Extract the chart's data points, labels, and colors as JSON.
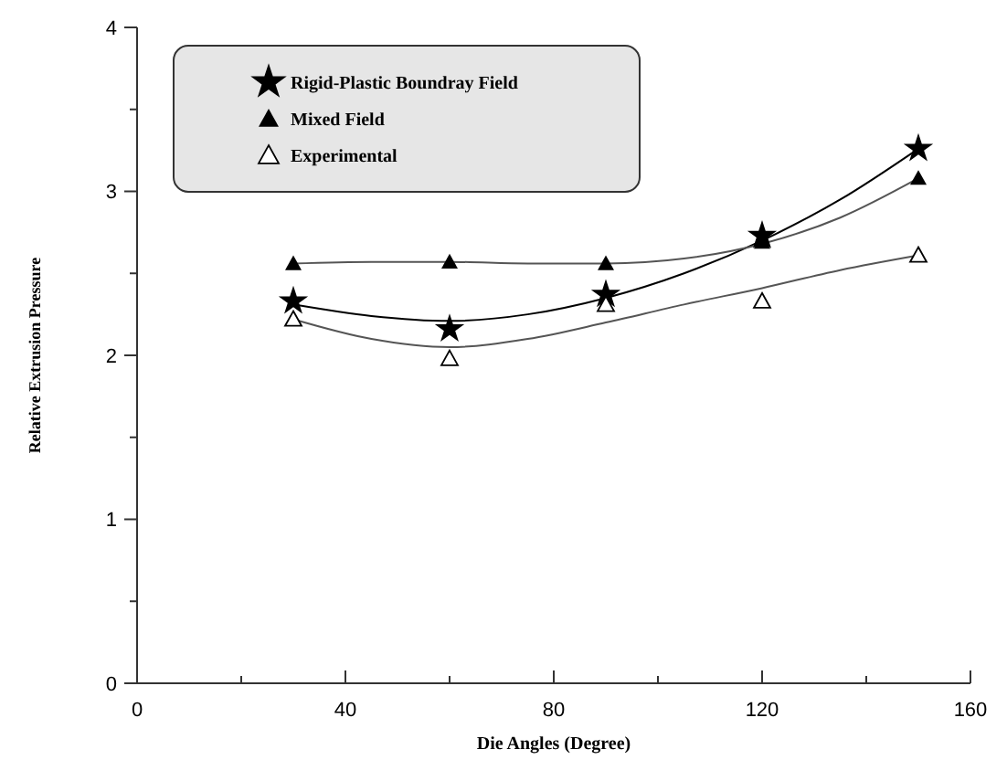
{
  "chart_data": {
    "type": "scatter",
    "xlabel": "Die Angles (Degree)",
    "ylabel": "Relative Extrusion Pressure",
    "xlim": [
      0,
      160
    ],
    "ylim": [
      0,
      4
    ],
    "xticks": [
      0,
      {
        "value": 20,
        "label": null
      },
      40,
      {
        "value": 60,
        "label": null
      },
      80,
      {
        "value": 100,
        "label": null
      },
      120,
      {
        "value": 140,
        "label": null
      },
      160
    ],
    "yticks": [
      0,
      {
        "value": 0.5,
        "label": null
      },
      1,
      {
        "value": 1.5,
        "label": null
      },
      2,
      {
        "value": 2.5,
        "label": null
      },
      3,
      {
        "value": 3.5,
        "label": null
      },
      4
    ],
    "grid": false,
    "legend": "top left",
    "series": [
      {
        "name": "Rigid-Plastic Boundray Field",
        "color": "#000000",
        "marker": "star",
        "x": [
          30,
          60,
          90,
          120,
          150
        ],
        "values": [
          2.33,
          2.16,
          2.37,
          2.73,
          3.26
        ]
      },
      {
        "name": "Mixed Field",
        "color": "#000000",
        "marker": "triangle",
        "x": [
          30,
          60,
          90,
          120,
          150
        ],
        "values": [
          2.56,
          2.57,
          2.56,
          2.69,
          3.08
        ]
      },
      {
        "name": "Experimental",
        "color": "#000000",
        "marker": "triangle-open",
        "x": [
          30,
          60,
          90,
          120,
          150
        ],
        "values": [
          2.22,
          1.98,
          2.31,
          2.33,
          2.61
        ]
      },
      {
        "type": "line",
        "color": "#000000",
        "x": [
          30,
          45,
          60,
          75,
          90,
          105,
          120,
          135,
          150
        ],
        "values": [
          2.31,
          2.24,
          2.21,
          2.25,
          2.35,
          2.5,
          2.7,
          2.95,
          3.26
        ]
      },
      {
        "type": "line",
        "color": "#555555",
        "x": [
          30,
          45,
          60,
          75,
          90,
          105,
          120,
          135,
          150
        ],
        "values": [
          2.56,
          2.57,
          2.57,
          2.56,
          2.56,
          2.59,
          2.68,
          2.84,
          3.08
        ]
      },
      {
        "type": "line",
        "color": "#555555",
        "x": [
          30,
          45,
          60,
          75,
          90,
          105,
          120,
          135,
          150
        ],
        "values": [
          2.22,
          2.1,
          2.05,
          2.1,
          2.2,
          2.31,
          2.41,
          2.52,
          2.61
        ]
      }
    ]
  }
}
